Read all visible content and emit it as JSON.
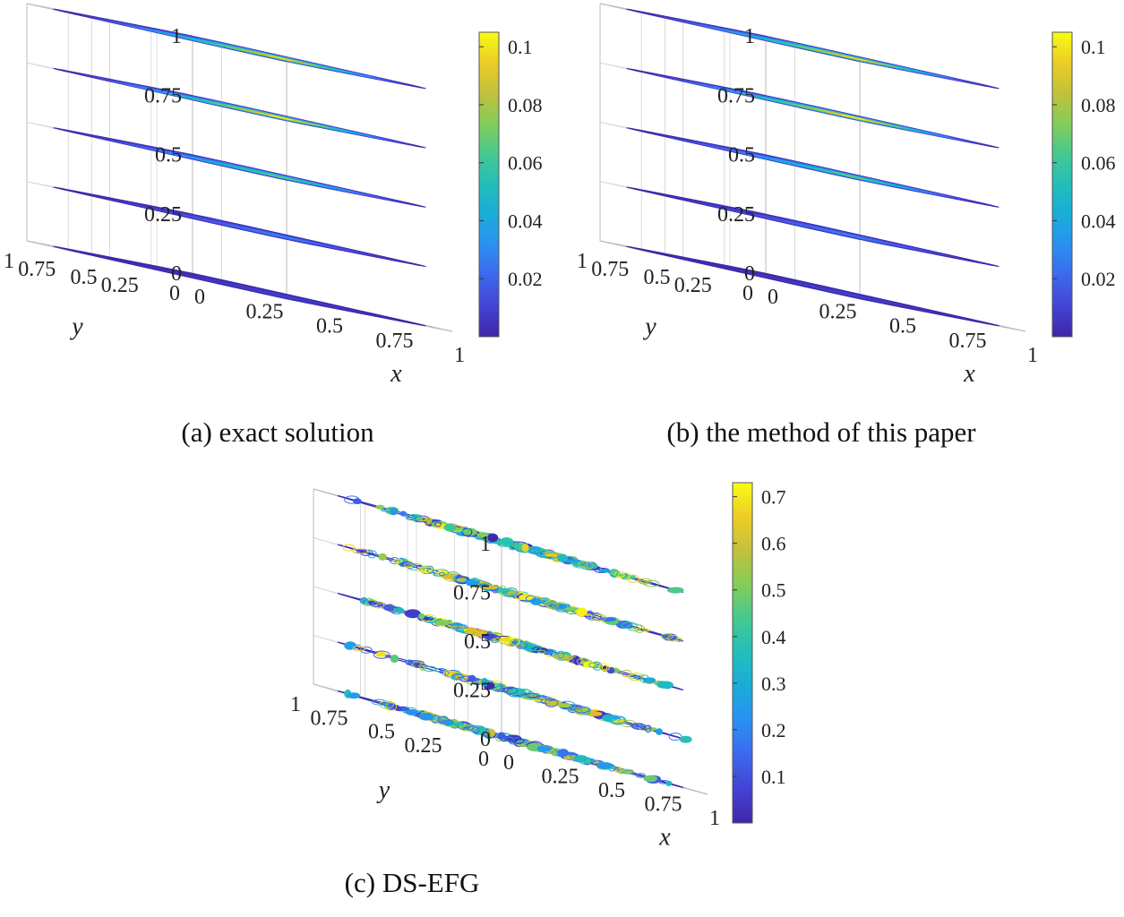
{
  "figure": {
    "panels": [
      {
        "id": "a",
        "caption": "(a) exact solution"
      },
      {
        "id": "b",
        "caption": "(b) the method of this paper"
      },
      {
        "id": "c",
        "caption": "(c) DS-EFG"
      }
    ]
  },
  "chart_data": [
    {
      "type": "contour3d-slices",
      "title": "(a) exact solution",
      "xlabel": "x",
      "ylabel": "y",
      "x_ticks": [
        "0",
        "0.25",
        "0.5",
        "0.75",
        "1"
      ],
      "y_ticks": [
        "0",
        "0.25",
        "0.5",
        "0.75",
        "1"
      ],
      "z_ticks": [
        "0",
        "0.25",
        "0.5",
        "0.75",
        "1"
      ],
      "slices_z": [
        0,
        0.25,
        0.5,
        0.75,
        1
      ],
      "colorbar": {
        "min": 0,
        "max": 0.105,
        "ticks": [
          "0.02",
          "0.04",
          "0.06",
          "0.08",
          "0.1"
        ]
      },
      "peak_per_slice": [
        0.01,
        0.03,
        0.07,
        0.105,
        0.1
      ],
      "pattern": "smooth"
    },
    {
      "type": "contour3d-slices",
      "title": "(b) the method of this paper",
      "xlabel": "x",
      "ylabel": "y",
      "x_ticks": [
        "0",
        "0.25",
        "0.5",
        "0.75",
        "1"
      ],
      "y_ticks": [
        "0",
        "0.25",
        "0.5",
        "0.75",
        "1"
      ],
      "z_ticks": [
        "0",
        "0.25",
        "0.5",
        "0.75",
        "1"
      ],
      "slices_z": [
        0,
        0.25,
        0.5,
        0.75,
        1
      ],
      "colorbar": {
        "min": 0,
        "max": 0.105,
        "ticks": [
          "0.02",
          "0.04",
          "0.06",
          "0.08",
          "0.1"
        ]
      },
      "peak_per_slice": [
        0.01,
        0.03,
        0.07,
        0.105,
        0.1
      ],
      "pattern": "smooth"
    },
    {
      "type": "contour3d-slices",
      "title": "(c) DS-EFG",
      "xlabel": "x",
      "ylabel": "y",
      "x_ticks": [
        "0",
        "0.25",
        "0.5",
        "0.75",
        "1"
      ],
      "y_ticks": [
        "0",
        "0.25",
        "0.5",
        "0.75",
        "1"
      ],
      "z_ticks": [
        "0",
        "0.25",
        "0.5",
        "0.75",
        "1"
      ],
      "slices_z": [
        0,
        0.25,
        0.5,
        0.75,
        1
      ],
      "colorbar": {
        "min": 0,
        "max": 0.73,
        "ticks": [
          "0.1",
          "0.2",
          "0.3",
          "0.4",
          "0.5",
          "0.6",
          "0.7"
        ]
      },
      "peak_per_slice": [
        0.6,
        0.65,
        0.7,
        0.7,
        0.65
      ],
      "pattern": "noisy"
    }
  ]
}
